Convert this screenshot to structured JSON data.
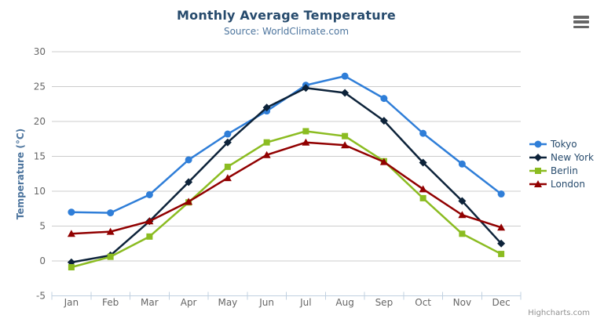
{
  "chart_data": {
    "type": "line",
    "title": "Monthly Average Temperature",
    "subtitle": "Source: WorldClimate.com",
    "xlabel": "",
    "ylabel": "Temperature (°C)",
    "categories": [
      "Jan",
      "Feb",
      "Mar",
      "Apr",
      "May",
      "Jun",
      "Jul",
      "Aug",
      "Sep",
      "Oct",
      "Nov",
      "Dec"
    ],
    "ylim": [
      -5,
      30
    ],
    "yticks": [
      -5,
      0,
      5,
      10,
      15,
      20,
      25,
      30
    ],
    "ytick_step": 5,
    "grid": "horizontal",
    "legend_position": "right",
    "series": [
      {
        "name": "Tokyo",
        "color": "#2f7ed8",
        "marker": "circle",
        "values": [
          7.0,
          6.9,
          9.5,
          14.5,
          18.2,
          21.5,
          25.2,
          26.5,
          23.3,
          18.3,
          13.9,
          9.6
        ]
      },
      {
        "name": "New York",
        "color": "#0d233a",
        "marker": "diamond",
        "values": [
          -0.2,
          0.8,
          5.7,
          11.3,
          17.0,
          22.0,
          24.8,
          24.1,
          20.1,
          14.1,
          8.6,
          2.5
        ]
      },
      {
        "name": "Berlin",
        "color": "#8bbc21",
        "marker": "square",
        "values": [
          -0.9,
          0.6,
          3.5,
          8.4,
          13.5,
          17.0,
          18.6,
          17.9,
          14.3,
          9.0,
          3.9,
          1.0
        ]
      },
      {
        "name": "London",
        "color": "#910000",
        "marker": "triangle",
        "values": [
          3.9,
          4.2,
          5.7,
          8.5,
          11.9,
          15.2,
          17.0,
          16.6,
          14.2,
          10.3,
          6.6,
          4.8
        ]
      }
    ],
    "theme": {
      "title_color": "#274b6d",
      "subtitle_color": "#4d759e",
      "axis_title_color": "#4d759e",
      "label_color": "#666666",
      "grid_color": "#cccccc",
      "axis_line_color": "#c0d0e0",
      "legend_text_color": "#274b6d",
      "credits_color": "#909090",
      "menu_icon_color": "#666666"
    }
  },
  "credits": {
    "label": "Highcharts.com"
  },
  "export_menu": {
    "icon": "hamburger-icon"
  }
}
